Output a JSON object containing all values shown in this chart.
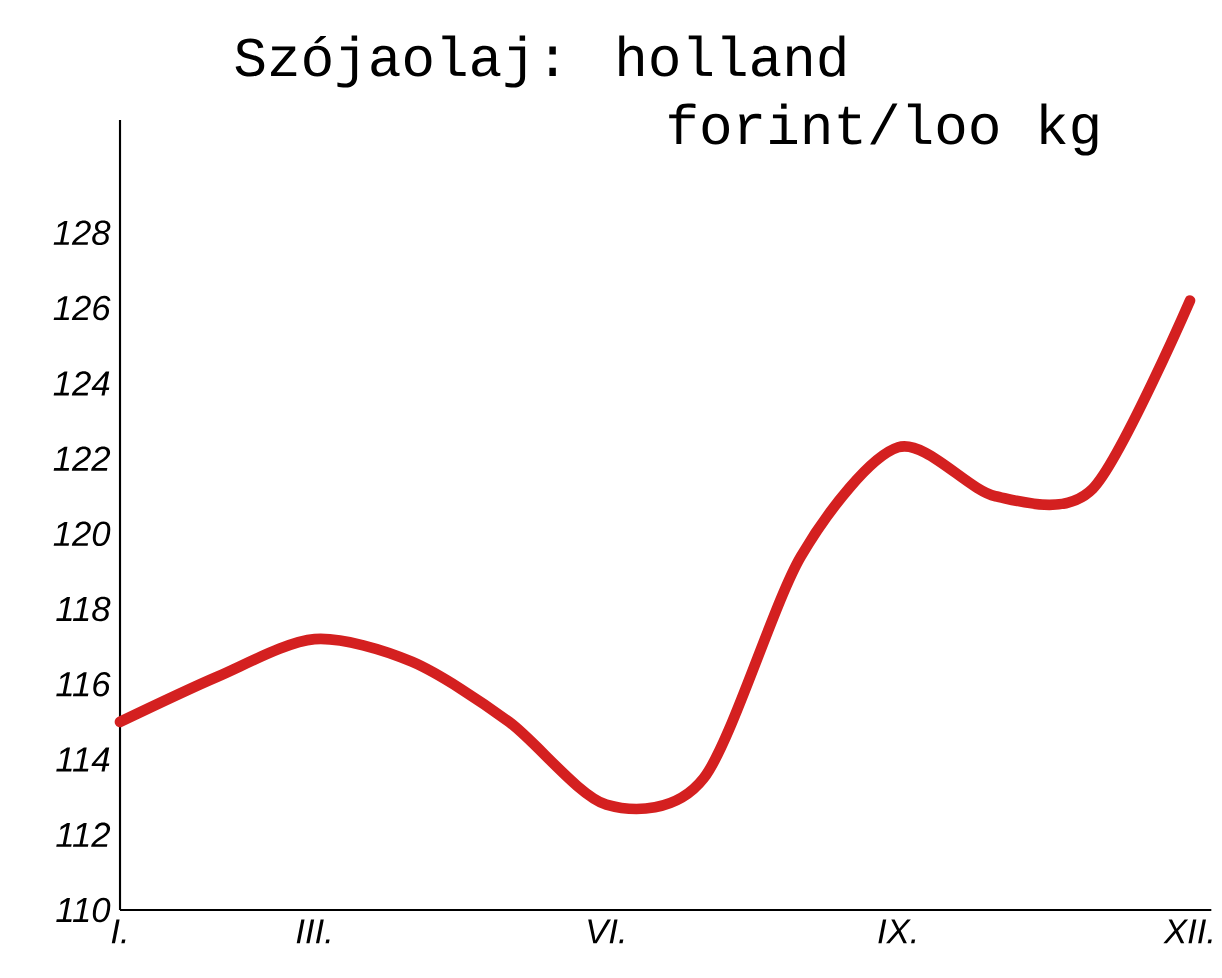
{
  "chart_data": {
    "type": "line",
    "title": "Szójaolaj: holland",
    "subtitle": "forint/loo kg",
    "categories": [
      "I.",
      null,
      "III.",
      null,
      null,
      "VI.",
      null,
      null,
      "IX.",
      null,
      null,
      "XII."
    ],
    "values": [
      115.0,
      116.2,
      117.2,
      116.6,
      115.0,
      112.8,
      113.5,
      119.4,
      122.3,
      121.0,
      121.2,
      126.2
    ],
    "color": "#d42020",
    "line_style": "solid",
    "ylim": [
      110,
      131
    ],
    "yticks": [
      110,
      112,
      114,
      116,
      118,
      120,
      122,
      124,
      126,
      128
    ]
  }
}
